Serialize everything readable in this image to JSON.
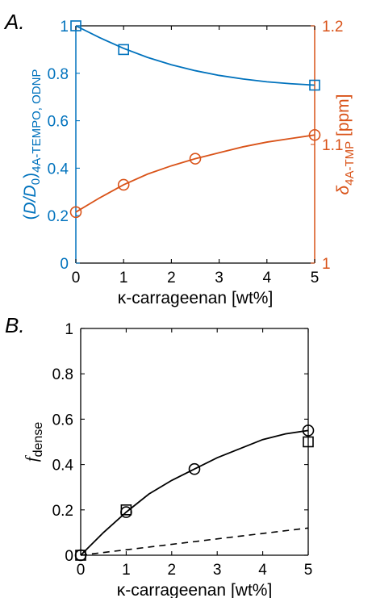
{
  "chart_data": [
    {
      "panel_label": "A.",
      "type": "line",
      "xlabel": "κ-carrageenan [wt%]",
      "xlim": [
        0,
        5
      ],
      "xticks": [
        0,
        1,
        2,
        3,
        4,
        5
      ],
      "ylabel_left": "(D/D0)4A-TEMPO, ODNP",
      "ylim_left": [
        0,
        1
      ],
      "yticks_left": [
        0,
        0.2,
        0.4,
        0.6,
        0.8,
        1
      ],
      "ylabel_right": "δ4A-TMP [ppm]",
      "ylim_right": [
        1,
        1.2
      ],
      "yticks_right": [
        1,
        1.1,
        1.2
      ],
      "grid": false,
      "series": [
        {
          "axis": "left",
          "marker": "square",
          "color": "#0072BD",
          "x": [
            0,
            1,
            5
          ],
          "y": [
            1.0,
            0.9,
            0.75
          ],
          "fit": {
            "x": [
              0,
              0.5,
              1,
              1.5,
              2,
              2.5,
              3,
              3.5,
              4,
              4.5,
              5
            ],
            "y": [
              1.0,
              0.95,
              0.905,
              0.867,
              0.836,
              0.811,
              0.791,
              0.776,
              0.764,
              0.756,
              0.75
            ]
          }
        },
        {
          "axis": "right",
          "marker": "circle",
          "color": "#D95319",
          "x": [
            0,
            1,
            2.5,
            5
          ],
          "y": [
            1.043,
            1.066,
            1.088,
            1.108
          ],
          "fit": {
            "x": [
              0,
              0.5,
              1,
              1.5,
              2,
              2.5,
              3,
              3.5,
              4,
              4.5,
              5
            ],
            "y": [
              1.043,
              1.055,
              1.066,
              1.075,
              1.082,
              1.088,
              1.093,
              1.098,
              1.102,
              1.105,
              1.108
            ]
          }
        }
      ]
    },
    {
      "panel_label": "B.",
      "type": "line",
      "xlabel": "κ-carrageenan [wt%]",
      "xlim": [
        0,
        5
      ],
      "xticks": [
        0,
        1,
        2,
        3,
        4,
        5
      ],
      "ylabel": "fdense",
      "ylim": [
        0,
        1
      ],
      "yticks": [
        0,
        0.2,
        0.4,
        0.6,
        0.8,
        1
      ],
      "grid": false,
      "series": [
        {
          "marker": "circle",
          "color": "#000000",
          "x": [
            0,
            1,
            2.5,
            5
          ],
          "y": [
            0,
            0.19,
            0.38,
            0.55
          ]
        },
        {
          "marker": "square",
          "color": "#000000",
          "x": [
            0,
            1,
            5
          ],
          "y": [
            0,
            0.2,
            0.5
          ]
        },
        {
          "style": "solid",
          "color": "#000000",
          "x": [
            0,
            0.5,
            1,
            1.5,
            2,
            2.5,
            3,
            3.5,
            4,
            4.5,
            5
          ],
          "y": [
            0,
            0.1,
            0.19,
            0.27,
            0.33,
            0.38,
            0.43,
            0.47,
            0.51,
            0.535,
            0.55
          ]
        },
        {
          "style": "dashed",
          "color": "#000000",
          "x": [
            0,
            5
          ],
          "y": [
            0,
            0.12
          ]
        }
      ]
    }
  ]
}
